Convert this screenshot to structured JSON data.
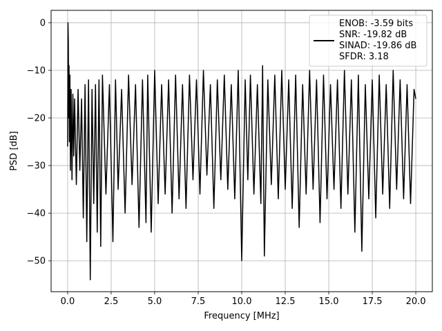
{
  "chart_data": {
    "type": "line",
    "title": "",
    "xlabel": "Frequency [MHz]",
    "ylabel": "PSD [dB]",
    "xlim": [
      -0.95,
      20.95
    ],
    "ylim": [
      -56.5,
      2.6
    ],
    "xticks": [
      0.0,
      2.5,
      5.0,
      7.5,
      10.0,
      12.5,
      15.0,
      17.5,
      20.0
    ],
    "xtick_labels": [
      "0.0",
      "2.5",
      "5.0",
      "7.5",
      "10.0",
      "12.5",
      "15.0",
      "17.5",
      "20.0"
    ],
    "yticks": [
      0,
      -10,
      -20,
      -30,
      -40,
      -50
    ],
    "ytick_labels": [
      "0",
      "−10",
      "−20",
      "−30",
      "−40",
      "−50"
    ],
    "grid": true,
    "legend": {
      "placement": "upper right",
      "entries": [
        "ENOB: -3.59 bits",
        "SNR: -19.82 dB",
        "SINAD: -19.86 dB",
        "SFDR: 3.18"
      ]
    },
    "series": [
      {
        "color": "#000000",
        "x": [
          0.0,
          0.02,
          0.04,
          0.06,
          0.08,
          0.1,
          0.13,
          0.16,
          0.2,
          0.25,
          0.3,
          0.35,
          0.4,
          0.5,
          0.6,
          0.7,
          0.8,
          0.9,
          1.0,
          1.1,
          1.2,
          1.3,
          1.4,
          1.5,
          1.6,
          1.7,
          1.8,
          1.9,
          2.0,
          2.2,
          2.4,
          2.6,
          2.75,
          2.9,
          3.1,
          3.3,
          3.5,
          3.7,
          3.9,
          4.1,
          4.3,
          4.5,
          4.6,
          4.8,
          5.0,
          5.2,
          5.4,
          5.6,
          5.8,
          6.0,
          6.2,
          6.4,
          6.6,
          6.8,
          7.0,
          7.2,
          7.4,
          7.6,
          7.8,
          8.0,
          8.2,
          8.4,
          8.6,
          8.8,
          9.0,
          9.2,
          9.4,
          9.6,
          9.8,
          10.0,
          10.2,
          10.35,
          10.5,
          10.7,
          10.9,
          11.1,
          11.2,
          11.3,
          11.5,
          11.7,
          11.9,
          12.1,
          12.3,
          12.5,
          12.7,
          12.9,
          13.1,
          13.3,
          13.5,
          13.7,
          13.9,
          14.1,
          14.3,
          14.5,
          14.7,
          14.9,
          15.1,
          15.3,
          15.5,
          15.7,
          15.9,
          16.1,
          16.3,
          16.5,
          16.7,
          16.9,
          17.1,
          17.3,
          17.5,
          17.7,
          17.9,
          18.1,
          18.3,
          18.5,
          18.7,
          18.9,
          19.1,
          19.3,
          19.5,
          19.7,
          19.9,
          20.0
        ],
        "y": [
          -26,
          0,
          -4,
          -20,
          -9,
          -25,
          -11,
          -31,
          -14,
          -33,
          -15,
          -28,
          -16,
          -34,
          -14,
          -31,
          -16,
          -41,
          -13,
          -46,
          -12,
          -54,
          -14,
          -38,
          -13,
          -44,
          -12,
          -47,
          -11,
          -36,
          -13,
          -46,
          -12,
          -35,
          -14,
          -40,
          -11,
          -34,
          -13,
          -43,
          -12,
          -42,
          -11,
          -44,
          -10,
          -38,
          -13,
          -36,
          -12,
          -40,
          -11,
          -37,
          -13,
          -39,
          -11,
          -33,
          -12,
          -36,
          -10,
          -32,
          -13,
          -39,
          -12,
          -33,
          -11,
          -35,
          -13,
          -37,
          -10,
          -50,
          -12,
          -33,
          -11,
          -36,
          -13,
          -38,
          -9,
          -49,
          -12,
          -34,
          -11,
          -37,
          -10,
          -35,
          -12,
          -39,
          -11,
          -43,
          -13,
          -36,
          -10,
          -35,
          -12,
          -42,
          -11,
          -37,
          -13,
          -35,
          -12,
          -39,
          -10,
          -36,
          -12,
          -44,
          -11,
          -48,
          -13,
          -37,
          -12,
          -41,
          -11,
          -36,
          -13,
          -39,
          -10,
          -35,
          -12,
          -37,
          -13,
          -38,
          -14,
          -16
        ]
      }
    ]
  }
}
